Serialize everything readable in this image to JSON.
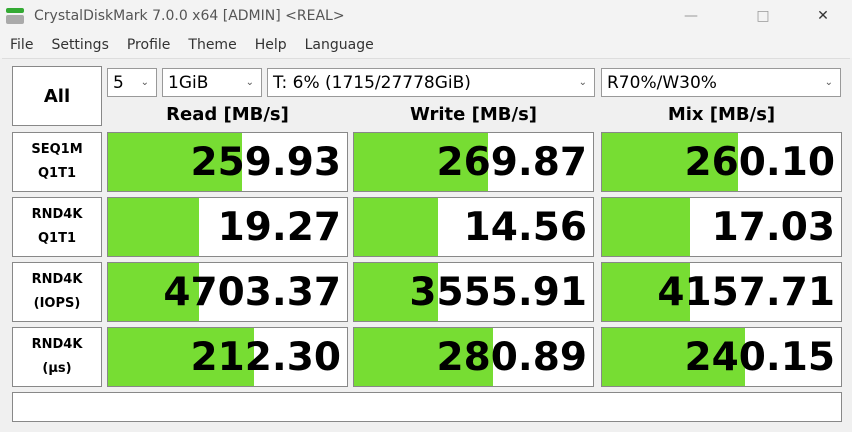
{
  "window": {
    "title": "CrystalDiskMark 7.0.0 x64 [ADMIN] <REAL>"
  },
  "menu": [
    "File",
    "Settings",
    "Profile",
    "Theme",
    "Help",
    "Language"
  ],
  "controls": {
    "all_label": "All",
    "count": "5",
    "size": "1GiB",
    "drive": "T: 6% (1715/27778GiB)",
    "mix": "R70%/W30%"
  },
  "columns": [
    "Read [MB/s]",
    "Write [MB/s]",
    "Mix [MB/s]"
  ],
  "rows": [
    {
      "label1": "SEQ1M",
      "label2": "Q1T1",
      "values": [
        "259.93",
        "269.87",
        "260.10"
      ],
      "fill": [
        0.56,
        0.56,
        0.57
      ]
    },
    {
      "label1": "RND4K",
      "label2": "Q1T1",
      "values": [
        "19.27",
        "14.56",
        "17.03"
      ],
      "fill": [
        0.38,
        0.35,
        0.37
      ]
    },
    {
      "label1": "RND4K",
      "label2": "(IOPS)",
      "values": [
        "4703.37",
        "3555.91",
        "4157.71"
      ],
      "fill": [
        0.38,
        0.35,
        0.37
      ]
    },
    {
      "label1": "RND4K",
      "label2": "(µs)",
      "values": [
        "212.30",
        "280.89",
        "240.15"
      ],
      "fill": [
        0.61,
        0.58,
        0.6
      ]
    }
  ],
  "status": "",
  "colors": {
    "bar": "#77dd33"
  }
}
